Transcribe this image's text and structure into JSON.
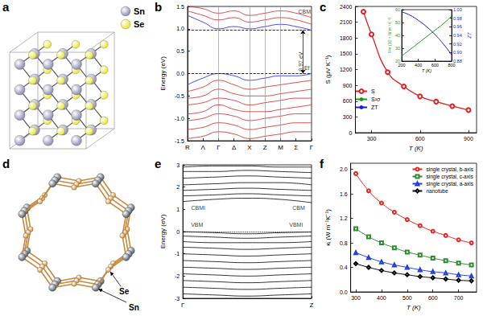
{
  "chart_data": [
    {
      "panel_label": "b",
      "type": "line",
      "y_label": "Energy (eV)",
      "grid": false,
      "x": [
        0,
        1,
        2,
        3,
        4,
        5,
        6,
        7,
        8
      ],
      "xlim": [
        0,
        8
      ],
      "xticks": [
        {
          "value": 0,
          "label": "R"
        },
        {
          "value": 1,
          "label": "Λ"
        },
        {
          "value": 2,
          "label": "Γ"
        },
        {
          "value": 3,
          "label": "Δ"
        },
        {
          "value": 4,
          "label": "X"
        },
        {
          "value": 5,
          "label": "Z"
        },
        {
          "value": 6,
          "label": "M"
        },
        {
          "value": 7,
          "label": "Σ"
        },
        {
          "value": 8,
          "label": "Γ"
        }
      ],
      "ylim": [
        -1.5,
        1.5
      ],
      "yticks": [
        -1.5,
        {
          "value": -1.0,
          "label": "-1.0"
        },
        -0.5,
        {
          "value": 0,
          "label": "0.0"
        },
        0.5,
        {
          "value": 1.0,
          "label": "1.0"
        },
        1.5
      ],
      "vertical_lines": [
        2,
        4,
        5,
        6
      ],
      "reference_lines": [
        {
          "y": 0,
          "line_style": "dashed"
        },
        {
          "y": 0.97,
          "line_style": "dashed"
        }
      ],
      "annotations": [
        {
          "text": "CBM",
          "x": 7.55,
          "y": 1.38
        },
        {
          "text": "Ef",
          "x": 7.7,
          "y": 0.12
        },
        {
          "text": "0.97 eV",
          "x": 7.45,
          "y": 0.485,
          "orientation": "vertical"
        }
      ],
      "series": [
        {
          "color": "#1a1aff",
          "values": [
            -0.25,
            -0.1,
            0.0,
            -0.05,
            -0.15,
            -0.1,
            -0.05,
            -0.05,
            0.0
          ]
        },
        {
          "color": "#d42020",
          "values": [
            -0.4,
            -0.3,
            -0.15,
            -0.25,
            -0.35,
            -0.3,
            -0.25,
            -0.2,
            -0.15
          ]
        },
        {
          "color": "#d42020",
          "values": [
            -0.55,
            -0.5,
            -0.35,
            -0.45,
            -0.5,
            -0.5,
            -0.45,
            -0.4,
            -0.35
          ]
        },
        {
          "color": "#d42020",
          "values": [
            -0.7,
            -0.65,
            -0.55,
            -0.6,
            -0.7,
            -0.65,
            -0.6,
            -0.55,
            -0.55
          ]
        },
        {
          "color": "#d42020",
          "values": [
            -0.9,
            -0.85,
            -0.7,
            -0.8,
            -0.85,
            -0.85,
            -0.8,
            -0.75,
            -0.7
          ]
        },
        {
          "color": "#d42020",
          "values": [
            -1.05,
            -1.0,
            -0.9,
            -0.95,
            -1.05,
            -1.0,
            -0.95,
            -0.9,
            -0.9
          ]
        },
        {
          "color": "#d42020",
          "values": [
            -1.25,
            -1.2,
            -1.1,
            -1.15,
            -1.25,
            -1.2,
            -1.15,
            -1.1,
            -1.1
          ]
        },
        {
          "color": "#d42020",
          "values": [
            -1.45,
            -1.4,
            -1.3,
            -1.35,
            -1.45,
            -1.4,
            -1.35,
            -1.3,
            -1.3
          ]
        },
        {
          "color": "#1a1aff",
          "values": [
            1.3,
            1.15,
            1.0,
            1.05,
            1.0,
            1.05,
            1.1,
            1.05,
            0.97
          ]
        },
        {
          "color": "#d42020",
          "values": [
            1.4,
            1.3,
            1.2,
            1.25,
            1.15,
            1.2,
            1.25,
            1.2,
            1.1
          ]
        },
        {
          "color": "#d42020",
          "values": [
            1.5,
            1.45,
            1.35,
            1.4,
            1.3,
            1.35,
            1.4,
            1.35,
            1.25
          ]
        }
      ]
    },
    {
      "panel_label": "c",
      "type": "line",
      "x_label": "T (K)",
      "y_label": "S (μV K⁻¹)",
      "grid": false,
      "legend": "left",
      "x": [
        250,
        300,
        400,
        500,
        600,
        700,
        800,
        900
      ],
      "xlim": [
        200,
        950
      ],
      "xticks": [
        300,
        600,
        900
      ],
      "ylim": [
        0,
        2400
      ],
      "yticks": [
        0,
        300,
        600,
        900,
        1200,
        1500,
        1800,
        2100,
        2400
      ],
      "series": [
        {
          "name": "S",
          "color": "#e02020",
          "marker": "circle",
          "values": [
            2300,
            1870,
            1150,
            880,
            690,
            590,
            505,
            430
          ]
        }
      ],
      "inset": {
        "type": "line",
        "x_label": "T (K)",
        "y_label": "S²σ (10⁻⁴ W m⁻¹K⁻²)",
        "y2_label": "ZT",
        "x": [
          200,
          300,
          400,
          500,
          600,
          700,
          800
        ],
        "xlim": [
          200,
          800
        ],
        "xticks": [
          200,
          400,
          600,
          800
        ],
        "ylim": [
          20,
          60
        ],
        "yticks": [
          20,
          30,
          40,
          50,
          60
        ],
        "y2lim": [
          0.88,
          1.0
        ],
        "y2ticks": [
          0.88,
          {
            "value": 0.9,
            "label": "0.90"
          },
          0.92,
          0.94,
          0.96,
          0.98,
          {
            "value": 1.0,
            "label": "1.00"
          }
        ],
        "series": [
          {
            "name": "S²σ",
            "color": "#1a9a1a",
            "values": [
              24,
              29,
              34,
              39,
              44,
              49,
              55
            ]
          },
          {
            "name": "ZT",
            "color": "#1a1ae0",
            "axis": "y2",
            "values": [
              0.995,
              0.987,
              0.975,
              0.96,
              0.942,
              0.92,
              0.895
            ]
          }
        ]
      }
    },
    {
      "panel_label": "e",
      "type": "line",
      "y_label": "Energy (eV)",
      "grid": false,
      "x": [
        0,
        0.25,
        0.5,
        0.75,
        1
      ],
      "xlim": [
        0,
        1
      ],
      "xticks": [
        {
          "value": 0,
          "label": "Γ"
        },
        {
          "value": 1,
          "label": "Z"
        }
      ],
      "ylim": [
        -3,
        3
      ],
      "yticks": [
        -3,
        -2,
        -1,
        0,
        1,
        2,
        3
      ],
      "reference_lines": [
        {
          "y": 0,
          "line_style": "dotted"
        }
      ],
      "annotations": [
        {
          "text": "CBMI",
          "x": 0.12,
          "y": 1.05
        },
        {
          "text": "CBM",
          "x": 0.9,
          "y": 1.05
        },
        {
          "text": "VBM",
          "x": 0.11,
          "y": 0.3
        },
        {
          "text": "VBMI",
          "x": 0.88,
          "y": 0.3
        }
      ],
      "series": [
        {
          "color": "#000000",
          "values": [
            1.35,
            1.45,
            1.5,
            1.45,
            1.3
          ]
        },
        {
          "color": "#000000",
          "values": [
            1.6,
            1.65,
            1.7,
            1.65,
            1.6
          ]
        },
        {
          "color": "#000000",
          "values": [
            1.85,
            1.9,
            1.95,
            1.9,
            1.85
          ]
        },
        {
          "color": "#000000",
          "values": [
            2.1,
            2.15,
            2.2,
            2.2,
            2.1
          ]
        },
        {
          "color": "#000000",
          "values": [
            2.4,
            2.45,
            2.5,
            2.45,
            2.4
          ]
        },
        {
          "color": "#000000",
          "values": [
            2.7,
            2.7,
            2.75,
            2.7,
            2.65
          ]
        },
        {
          "color": "#000000",
          "values": [
            2.9,
            2.95,
            2.95,
            2.9,
            2.9
          ]
        },
        {
          "color": "#000000",
          "values": [
            0.0,
            -0.05,
            -0.1,
            -0.05,
            -0.02
          ]
        },
        {
          "color": "#000000",
          "values": [
            -0.2,
            -0.25,
            -0.3,
            -0.25,
            -0.2
          ]
        },
        {
          "color": "#000000",
          "values": [
            -0.45,
            -0.5,
            -0.5,
            -0.5,
            -0.45
          ]
        },
        {
          "color": "#000000",
          "values": [
            -0.7,
            -0.75,
            -0.8,
            -0.75,
            -0.7
          ]
        },
        {
          "color": "#000000",
          "values": [
            -1.0,
            -1.05,
            -1.1,
            -1.05,
            -1.0
          ]
        },
        {
          "color": "#000000",
          "values": [
            -1.3,
            -1.35,
            -1.4,
            -1.35,
            -1.3
          ]
        },
        {
          "color": "#000000",
          "values": [
            -1.6,
            -1.65,
            -1.7,
            -1.65,
            -1.6
          ]
        },
        {
          "color": "#000000",
          "values": [
            -1.9,
            -1.95,
            -2.0,
            -1.95,
            -1.9
          ]
        },
        {
          "color": "#000000",
          "values": [
            -2.2,
            -2.25,
            -2.3,
            -2.25,
            -2.2
          ]
        },
        {
          "color": "#000000",
          "values": [
            -2.5,
            -2.55,
            -2.6,
            -2.55,
            -2.5
          ]
        },
        {
          "color": "#000000",
          "values": [
            -2.8,
            -2.85,
            -2.9,
            -2.85,
            -2.8
          ]
        }
      ]
    },
    {
      "panel_label": "f",
      "type": "line",
      "x_label": "T (K)",
      "y_label": "κₗ (W m⁻¹K⁻¹)",
      "grid": false,
      "legend": "upper right",
      "x": [
        300,
        350,
        400,
        450,
        500,
        550,
        600,
        650,
        700,
        750
      ],
      "xlim": [
        280,
        770
      ],
      "xticks": [
        300,
        400,
        500,
        600,
        700
      ],
      "ylim": [
        0,
        2.1
      ],
      "yticks": [
        {
          "value": 0,
          "label": "0.0"
        },
        0.4,
        0.8,
        1.2,
        1.6,
        {
          "value": 2.0,
          "label": "2.0"
        }
      ],
      "series": [
        {
          "name": "single crystal, b-axis",
          "color": "#e8251f",
          "marker": "circle",
          "values": [
            1.93,
            1.65,
            1.45,
            1.3,
            1.18,
            1.08,
            0.99,
            0.92,
            0.85,
            0.8
          ]
        },
        {
          "name": "single crystal, c-axis",
          "color": "#2e8b2e",
          "marker": "rect",
          "values": [
            1.03,
            0.9,
            0.8,
            0.72,
            0.65,
            0.6,
            0.55,
            0.51,
            0.47,
            0.44
          ]
        },
        {
          "name": "single crystal, a-axis",
          "color": "#1f3fd9",
          "marker": "triangle",
          "values": [
            0.64,
            0.56,
            0.49,
            0.44,
            0.4,
            0.36,
            0.33,
            0.31,
            0.28,
            0.26
          ]
        },
        {
          "name": "nanotube",
          "color": "#000000",
          "marker": "diamond",
          "values": [
            0.46,
            0.4,
            0.35,
            0.31,
            0.28,
            0.25,
            0.23,
            0.21,
            0.19,
            0.18
          ]
        }
      ]
    }
  ],
  "diagrams": [
    {
      "panel_label": "a",
      "legend": [
        {
          "label": "Sn",
          "color": "#8c8cb4"
        },
        {
          "label": "Se",
          "color": "#e6e632"
        }
      ]
    },
    {
      "panel_label": "d",
      "labels": [
        {
          "text": "Se",
          "color": "#d8963a"
        },
        {
          "text": "Sn",
          "color": "#4e5d66"
        }
      ]
    }
  ]
}
